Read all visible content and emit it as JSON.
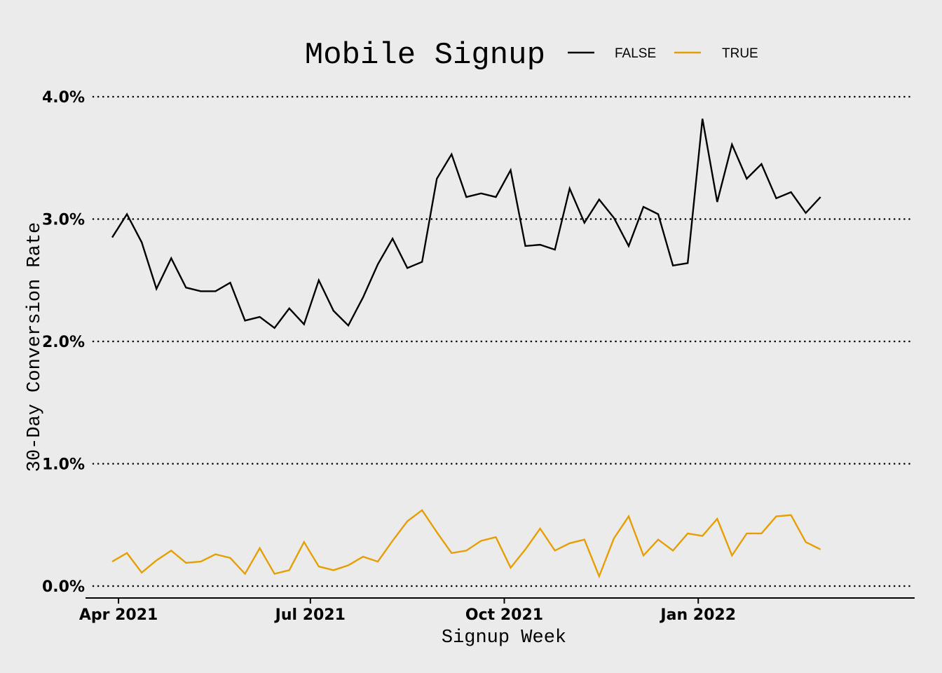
{
  "chart_data": {
    "type": "line",
    "title": "Mobile Signup",
    "xlabel": "Signup Week",
    "ylabel": "30-Day Conversion Rate",
    "ylim": [
      0,
      4.0
    ],
    "xlim": [
      "2021-03-20",
      "2022-04-12"
    ],
    "grid": "horizontal dotted",
    "legend_position": "top",
    "y_ticks": [
      {
        "value": 0,
        "label": "0.0%"
      },
      {
        "value": 1,
        "label": "1.0%"
      },
      {
        "value": 2,
        "label": "2.0%"
      },
      {
        "value": 3,
        "label": "3.0%"
      },
      {
        "value": 4,
        "label": "4.0%"
      }
    ],
    "x_ticks": [
      {
        "value": "2021-04-01",
        "label": "Apr 2021"
      },
      {
        "value": "2021-07-01",
        "label": "Jul 2021"
      },
      {
        "value": "2021-10-01",
        "label": "Oct 2021"
      },
      {
        "value": "2022-01-01",
        "label": "Jan 2022"
      }
    ],
    "x": [
      "2021-03-29",
      "2021-04-05",
      "2021-04-12",
      "2021-04-19",
      "2021-04-26",
      "2021-05-03",
      "2021-05-10",
      "2021-05-17",
      "2021-05-24",
      "2021-05-31",
      "2021-06-07",
      "2021-06-14",
      "2021-06-21",
      "2021-06-28",
      "2021-07-05",
      "2021-07-12",
      "2021-07-19",
      "2021-07-26",
      "2021-08-02",
      "2021-08-09",
      "2021-08-16",
      "2021-08-23",
      "2021-08-30",
      "2021-09-06",
      "2021-09-13",
      "2021-09-20",
      "2021-09-27",
      "2021-10-04",
      "2021-10-11",
      "2021-10-18",
      "2021-10-25",
      "2021-11-01",
      "2021-11-08",
      "2021-11-15",
      "2021-11-22",
      "2021-11-29",
      "2021-12-06",
      "2021-12-13",
      "2021-12-20",
      "2021-12-27",
      "2022-01-03",
      "2022-01-10",
      "2022-01-17",
      "2022-01-24",
      "2022-01-31",
      "2022-02-07",
      "2022-02-14",
      "2022-02-21",
      "2022-02-28"
    ],
    "series": [
      {
        "name": "FALSE",
        "color": "#000000",
        "values": [
          2.85,
          3.04,
          2.81,
          2.43,
          2.68,
          2.44,
          2.41,
          2.41,
          2.48,
          2.17,
          2.2,
          2.11,
          2.27,
          2.14,
          2.5,
          2.25,
          2.13,
          2.36,
          2.63,
          2.84,
          2.6,
          2.65,
          3.33,
          3.53,
          3.18,
          3.21,
          3.18,
          3.4,
          2.78,
          2.79,
          2.75,
          3.25,
          2.97,
          3.16,
          3.01,
          2.78,
          3.1,
          3.04,
          2.62,
          2.64,
          3.82,
          3.14,
          3.61,
          3.33,
          3.45,
          3.17,
          3.22,
          3.05,
          3.18
        ]
      },
      {
        "name": "TRUE",
        "color": "#e69f00",
        "values": [
          0.2,
          0.27,
          0.11,
          0.21,
          0.29,
          0.19,
          0.2,
          0.26,
          0.23,
          0.1,
          0.31,
          0.1,
          0.13,
          0.36,
          0.16,
          0.13,
          0.17,
          0.24,
          0.2,
          0.37,
          0.53,
          0.62,
          0.44,
          0.27,
          0.29,
          0.37,
          0.4,
          0.15,
          0.3,
          0.47,
          0.29,
          0.35,
          0.38,
          0.08,
          0.39,
          0.57,
          0.25,
          0.38,
          0.29,
          0.43,
          0.41,
          0.55,
          0.25,
          0.43,
          0.43,
          0.57,
          0.58,
          0.36,
          0.3
        ]
      }
    ]
  }
}
